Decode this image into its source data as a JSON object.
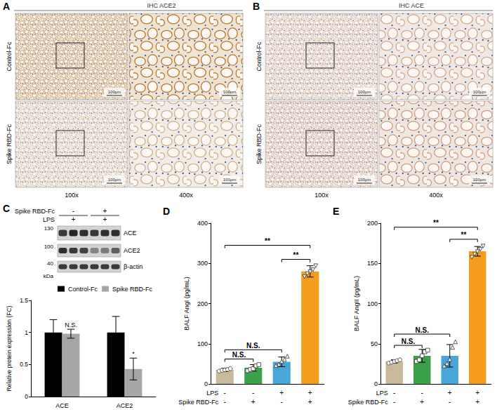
{
  "panels": {
    "A": {
      "letter": "A",
      "title": "IHC ACE2",
      "rows": [
        "Control-Fc",
        "Spike RBD-Fc"
      ],
      "columns": [
        "100x",
        "400x"
      ],
      "scale_bar": "100μm"
    },
    "B": {
      "letter": "B",
      "title": "IHC ACE",
      "rows": [
        "Control-Fc",
        "Spike RBD-Fc"
      ],
      "columns": [
        "100x",
        "400x"
      ],
      "scale_bar": "100μm"
    },
    "C": {
      "letter": "C",
      "blot": {
        "treatments": [
          {
            "label": "Spike RBD-Fc",
            "signs": [
              "-",
              "+"
            ]
          },
          {
            "label": "LPS",
            "signs": [
              "+",
              "+"
            ]
          }
        ],
        "size_markers": [
          130,
          100,
          40
        ],
        "size_unit": "kDa",
        "bands": [
          "ACE",
          "ACE2",
          "β-actin"
        ]
      }
    }
  },
  "chart_data": [
    {
      "panel": "C",
      "type": "bar",
      "categories": [
        "ACE",
        "ACE2"
      ],
      "y_label": "Relative protein expression (FC)",
      "ylim": [
        0,
        1.5
      ],
      "yticks": [
        0,
        0.5,
        1,
        1.5
      ],
      "legend": "upper right",
      "grid": false,
      "series": [
        {
          "name": "Control-Fc",
          "color": "#000000",
          "values": [
            1,
            1
          ],
          "errors": [
            0.2,
            0.25
          ]
        },
        {
          "name": "Spike RBD-Fc",
          "color": "#a6a6a6",
          "values": [
            0.98,
            0.43
          ],
          "errors": [
            0.07,
            0.17
          ],
          "annotations": [
            "N.S.",
            "*"
          ]
        }
      ]
    },
    {
      "panel": "D",
      "type": "bar",
      "y_label": "BALF AngI (pg/mL)",
      "x_rows": [
        {
          "label": "LPS",
          "signs": [
            "-",
            "-",
            "+",
            "+"
          ]
        },
        {
          "label": "Spike RBD-Fc",
          "signs": [
            "-",
            "+",
            "-",
            "+"
          ]
        }
      ],
      "values": [
        35,
        40,
        55,
        280
      ],
      "errors": [
        4,
        8,
        12,
        14
      ],
      "points": [
        [
          32,
          34,
          35,
          36,
          38
        ],
        [
          33,
          36,
          38,
          45,
          48
        ],
        [
          45,
          48,
          55,
          60,
          68
        ],
        [
          268,
          275,
          280,
          285,
          295
        ]
      ],
      "colors": [
        "#c9b99b",
        "#3aa04a",
        "#49a6d8",
        "#f39c1e"
      ],
      "markers": [
        "circle",
        "square",
        "triangle",
        "triangle-down"
      ],
      "ylim": [
        0,
        400
      ],
      "yticks": [
        0,
        100,
        200,
        300,
        400
      ],
      "grid": false,
      "brackets": [
        {
          "from": 0,
          "to": 1,
          "y": 62,
          "label": "N.S."
        },
        {
          "from": 0,
          "to": 2,
          "y": 85,
          "label": "N.S."
        },
        {
          "from": 2,
          "to": 3,
          "y": 310,
          "label": "**"
        },
        {
          "from": 0,
          "to": 3,
          "y": 345,
          "label": "**"
        }
      ]
    },
    {
      "panel": "E",
      "type": "bar",
      "y_label": "BALF AngII (pg/mL)",
      "x_rows": [
        {
          "label": "LPS",
          "signs": [
            "-",
            "-",
            "+",
            "+"
          ]
        },
        {
          "label": "Spike RBD-Fc",
          "signs": [
            "-",
            "+",
            "-",
            "+"
          ]
        }
      ],
      "values": [
        28,
        35,
        35,
        165
      ],
      "errors": [
        2,
        8,
        14,
        6
      ],
      "points": [
        [
          26,
          27,
          28,
          29,
          30
        ],
        [
          28,
          30,
          35,
          40,
          42
        ],
        [
          22,
          25,
          30,
          45,
          52
        ],
        [
          158,
          162,
          165,
          168,
          172
        ]
      ],
      "colors": [
        "#c9b99b",
        "#3aa04a",
        "#49a6d8",
        "#f39c1e"
      ],
      "markers": [
        "circle",
        "square",
        "triangle",
        "triangle-down"
      ],
      "ylim": [
        0,
        200
      ],
      "yticks": [
        0,
        50,
        100,
        150,
        200
      ],
      "grid": false,
      "brackets": [
        {
          "from": 0,
          "to": 1,
          "y": 48,
          "label": "N.S."
        },
        {
          "from": 0,
          "to": 2,
          "y": 62,
          "label": "N.S."
        },
        {
          "from": 2,
          "to": 3,
          "y": 180,
          "label": "**"
        },
        {
          "from": 0,
          "to": 3,
          "y": 195,
          "label": "**"
        }
      ]
    }
  ]
}
